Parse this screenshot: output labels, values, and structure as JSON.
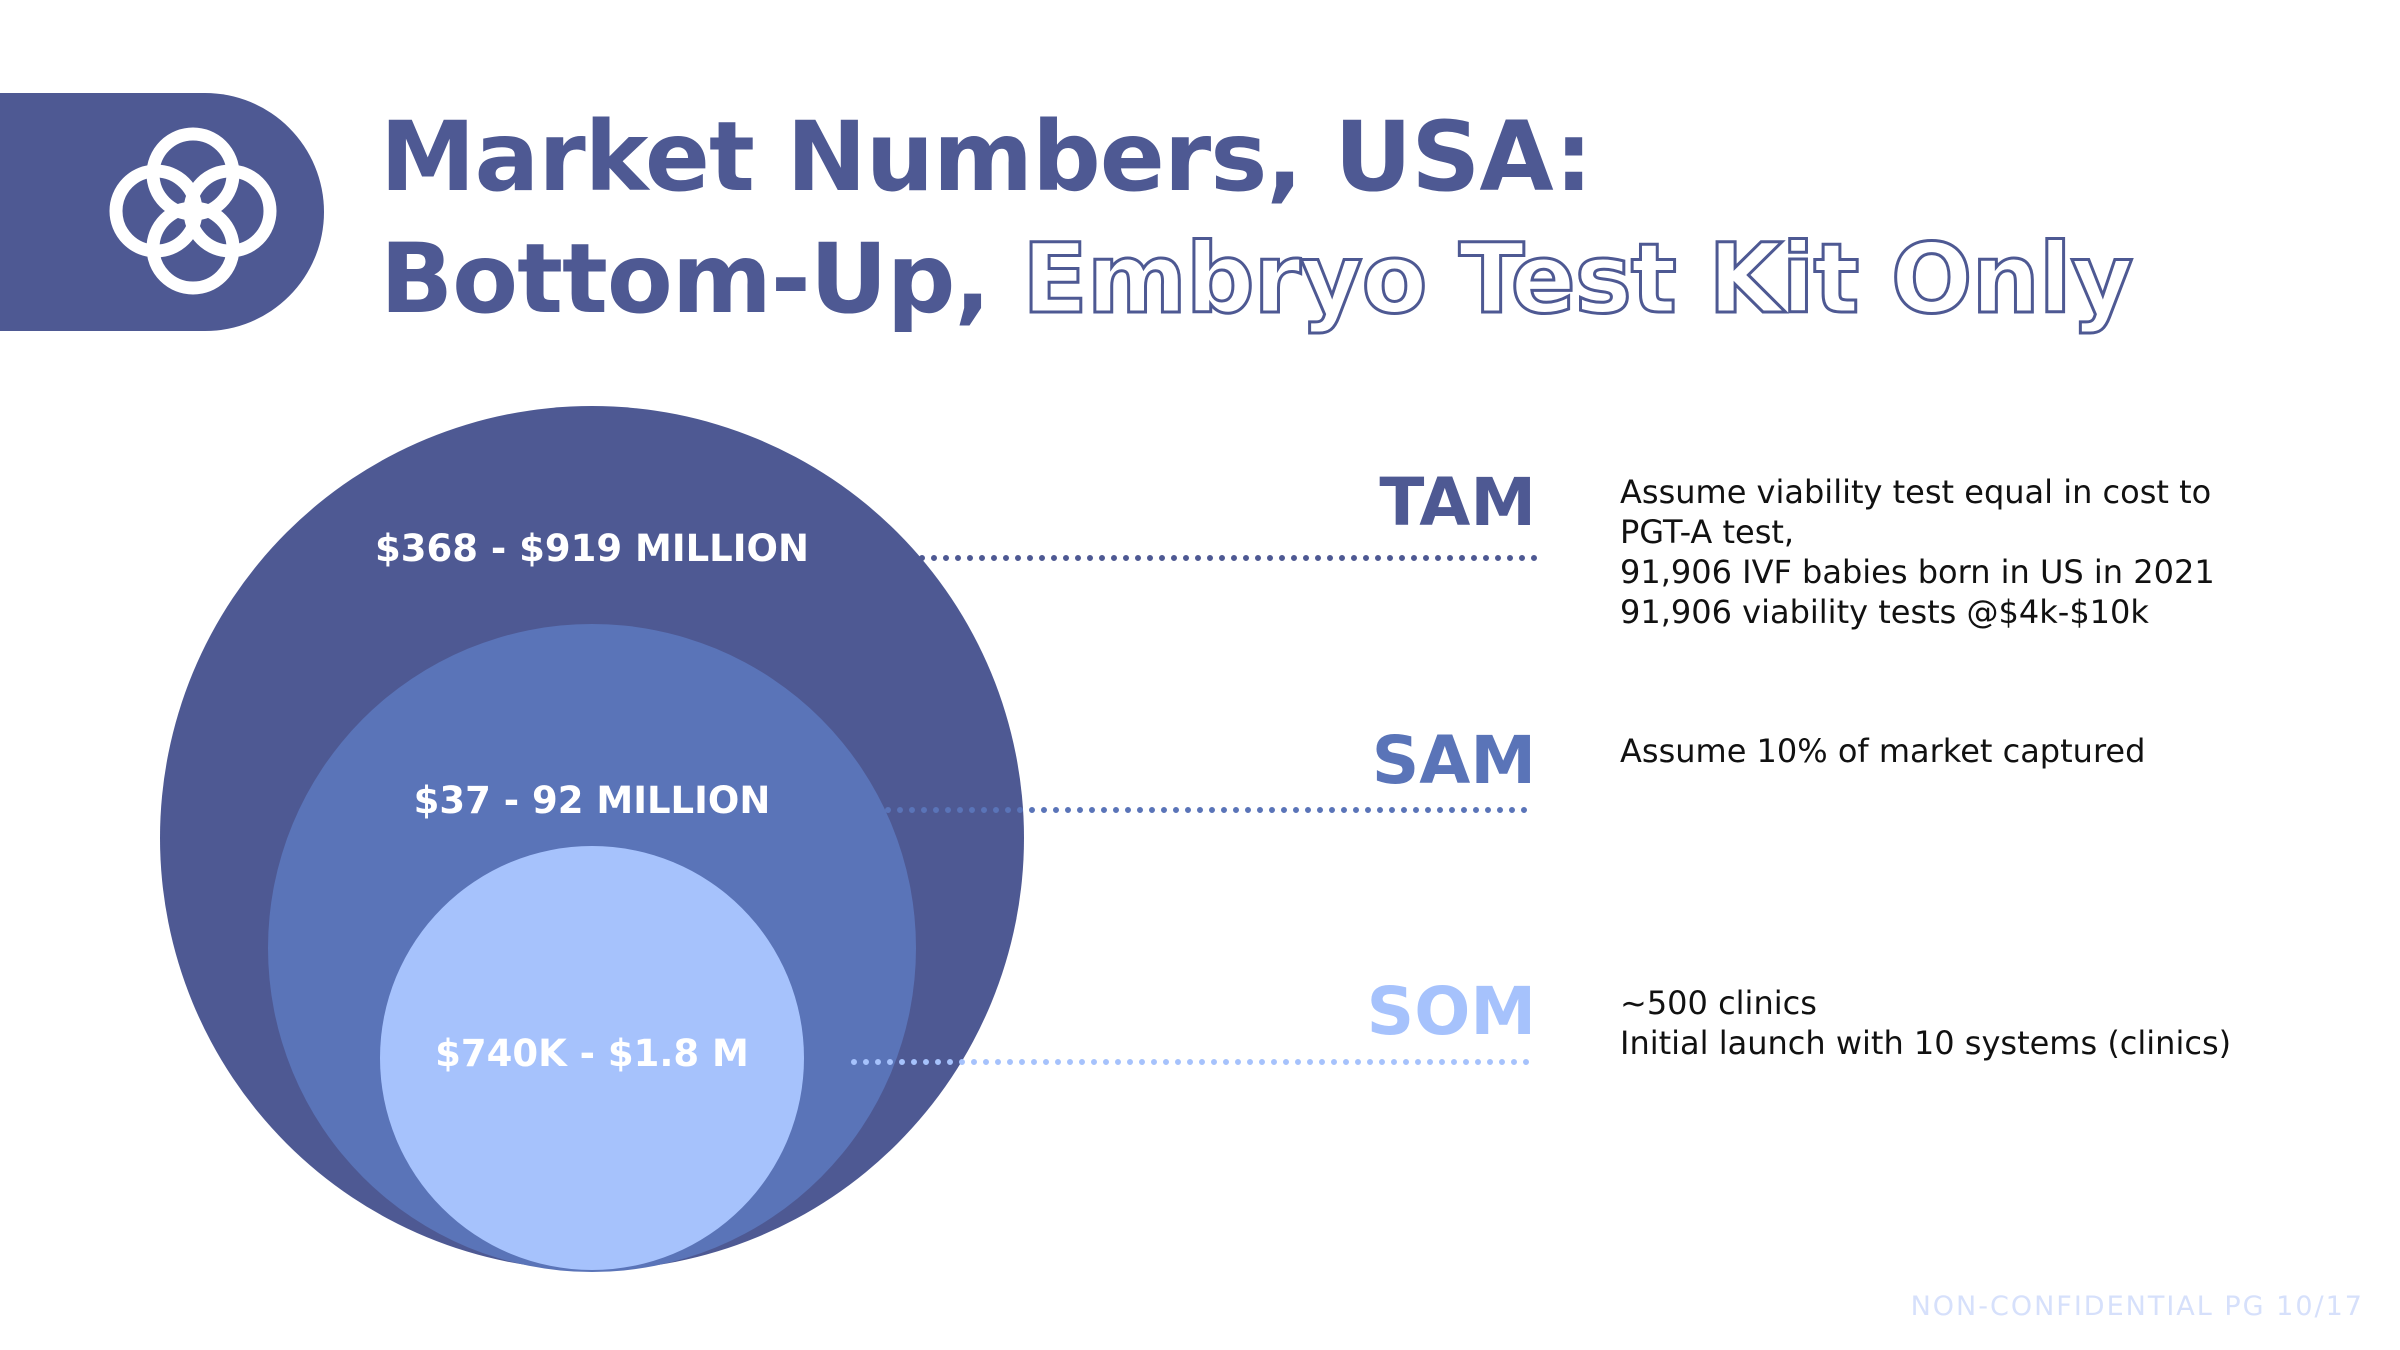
{
  "header": {
    "title_line1": "Market Numbers, USA:",
    "title_line2_solid": "Bottom-Up,",
    "title_line2_outline": "Embryo Test Kit Only"
  },
  "colors": {
    "brand": "#4e5993",
    "tam": "#4e5993",
    "sam": "#5a74b8",
    "som": "#a6c2fc"
  },
  "markets": [
    {
      "tier": "TAM",
      "value": "$368 - $919 MILLION",
      "description": [
        "Assume viability test equal in cost to",
        "PGT-A test,",
        "91,906 IVF babies born in US in 2021",
        "91,906 viability tests @$4k-$10k"
      ]
    },
    {
      "tier": "SAM",
      "value": "$37 - 92 MILLION",
      "description": [
        "Assume 10% of market captured"
      ]
    },
    {
      "tier": "SOM",
      "value": "$740K - $1.8 M",
      "description": [
        "~500 clinics",
        "Initial launch with 10 systems (clinics)"
      ]
    }
  ],
  "footer": {
    "text": "NON-CONFIDENTIAL PG 10/17"
  }
}
